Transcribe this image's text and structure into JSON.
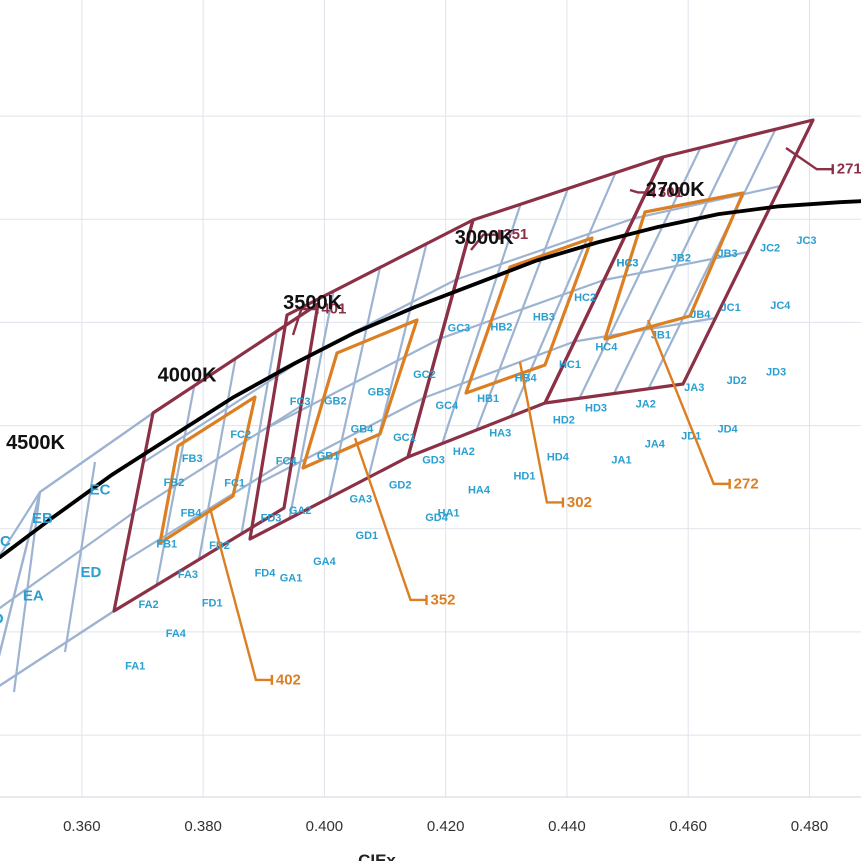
{
  "chart_data": {
    "type": "scatter",
    "xlabel": "CIEx",
    "ylabel": "",
    "xlim": [
      0.3465,
      0.4885
    ],
    "ylim": [
      0.288,
      0.4425
    ],
    "x_ticks": [
      "0.360",
      "0.380",
      "0.400",
      "0.420",
      "0.440",
      "0.460",
      "0.480"
    ],
    "x_tick_values": [
      0.36,
      0.38,
      0.4,
      0.42,
      0.44,
      0.46,
      0.48
    ],
    "y_gridlines": [
      0.3,
      0.32,
      0.34,
      0.36,
      0.38,
      0.4,
      0.42
    ],
    "grid": true,
    "colors": {
      "ansi_quad": "#8b3045",
      "subbin_grid": "#9db3d2",
      "inner_quad": "#dc7f22",
      "bin_text": "#2a9fd0",
      "locus": "#000000"
    },
    "planckian_locus": {
      "x": [
        0.3465,
        0.355,
        0.365,
        0.375,
        0.385,
        0.395,
        0.405,
        0.415,
        0.425,
        0.435,
        0.445,
        0.455,
        0.465,
        0.475,
        0.485,
        0.4885
      ],
      "y": [
        0.3345,
        0.342,
        0.3505,
        0.358,
        0.3655,
        0.372,
        0.378,
        0.383,
        0.3875,
        0.392,
        0.3955,
        0.3985,
        0.401,
        0.4025,
        0.4033,
        0.4035
      ]
    },
    "cct_groups": [
      {
        "cct_label": "4500K",
        "label_at": [
          0.3475,
          0.3555
        ],
        "bins": [
          {
            "name": "EC",
            "x": 0.363,
            "y": 0.3475
          },
          {
            "name": "EB",
            "x": 0.3535,
            "y": 0.342
          },
          {
            "name": "ED",
            "x": 0.3615,
            "y": 0.3315
          },
          {
            "name": "EA",
            "x": 0.352,
            "y": 0.327
          },
          {
            "name": "DC",
            "x": 0.3465,
            "y": 0.3375
          },
          {
            "name": "D",
            "x": 0.3462,
            "y": 0.3225
          }
        ]
      },
      {
        "cct_label": "4000K",
        "label_at": [
          0.3725,
          0.3685
        ],
        "ansi_label": "401",
        "ansi_label_at": [
          0.3995,
          0.3826
        ],
        "inner_label": "402",
        "inner_label_at": [
          0.392,
          0.3107
        ],
        "bins": [
          {
            "name": "FC3",
            "x": 0.396,
            "y": 0.3646
          },
          {
            "name": "FC2",
            "x": 0.3862,
            "y": 0.3582
          },
          {
            "name": "FC4",
            "x": 0.3937,
            "y": 0.353
          },
          {
            "name": "FB3",
            "x": 0.3782,
            "y": 0.3535
          },
          {
            "name": "FC1",
            "x": 0.3852,
            "y": 0.3488
          },
          {
            "name": "FB2",
            "x": 0.3752,
            "y": 0.3489
          },
          {
            "name": "FB4",
            "x": 0.378,
            "y": 0.343
          },
          {
            "name": "FD3",
            "x": 0.3912,
            "y": 0.342
          },
          {
            "name": "FB1",
            "x": 0.374,
            "y": 0.3369
          },
          {
            "name": "FD2",
            "x": 0.3827,
            "y": 0.3367
          },
          {
            "name": "FA3",
            "x": 0.3775,
            "y": 0.331
          },
          {
            "name": "FD4",
            "x": 0.3902,
            "y": 0.3313
          },
          {
            "name": "FA2",
            "x": 0.371,
            "y": 0.3252
          },
          {
            "name": "FD1",
            "x": 0.3815,
            "y": 0.3255
          },
          {
            "name": "FA4",
            "x": 0.3755,
            "y": 0.3196
          },
          {
            "name": "FA1",
            "x": 0.3688,
            "y": 0.3133
          }
        ]
      },
      {
        "cct_label": "3500K",
        "label_at": [
          0.3932,
          0.3826
        ],
        "ansi_label": "351",
        "ansi_label_at": [
          0.4295,
          0.397
        ],
        "inner_label": "352",
        "inner_label_at": [
          0.4175,
          0.3262
        ],
        "bins": [
          {
            "name": "GC3",
            "x": 0.4222,
            "y": 0.3788
          },
          {
            "name": "GC2",
            "x": 0.4165,
            "y": 0.3698
          },
          {
            "name": "GB2",
            "x": 0.4018,
            "y": 0.3647
          },
          {
            "name": "GB3",
            "x": 0.409,
            "y": 0.3664
          },
          {
            "name": "GC4",
            "x": 0.4202,
            "y": 0.3638
          },
          {
            "name": "GB4",
            "x": 0.4062,
            "y": 0.3592
          },
          {
            "name": "GC1",
            "x": 0.4132,
            "y": 0.3576
          },
          {
            "name": "GB1",
            "x": 0.4006,
            "y": 0.354
          },
          {
            "name": "GD3",
            "x": 0.418,
            "y": 0.3532
          },
          {
            "name": "GD2",
            "x": 0.4125,
            "y": 0.3484
          },
          {
            "name": "GA3",
            "x": 0.406,
            "y": 0.3457
          },
          {
            "name": "GA2",
            "x": 0.396,
            "y": 0.3434
          },
          {
            "name": "GD4",
            "x": 0.4185,
            "y": 0.3421
          },
          {
            "name": "GD1",
            "x": 0.407,
            "y": 0.3386
          },
          {
            "name": "GA4",
            "x": 0.4,
            "y": 0.3336
          },
          {
            "name": "GA1",
            "x": 0.3945,
            "y": 0.3304
          }
        ]
      },
      {
        "cct_label": "3000K",
        "label_at": [
          0.4215,
          0.3952
        ],
        "ansi_label": "301",
        "ansi_label_at": [
          0.455,
          0.4052
        ],
        "inner_label": "302",
        "inner_label_at": [
          0.44,
          0.3451
        ],
        "bins": [
          {
            "name": "HC3",
            "x": 0.45,
            "y": 0.3914
          },
          {
            "name": "HC2",
            "x": 0.443,
            "y": 0.3847
          },
          {
            "name": "HB2",
            "x": 0.4292,
            "y": 0.379
          },
          {
            "name": "HB3",
            "x": 0.4362,
            "y": 0.381
          },
          {
            "name": "HC4",
            "x": 0.4465,
            "y": 0.3751
          },
          {
            "name": "HC1",
            "x": 0.4405,
            "y": 0.3717
          },
          {
            "name": "HB4",
            "x": 0.4332,
            "y": 0.3691
          },
          {
            "name": "HB1",
            "x": 0.427,
            "y": 0.3652
          },
          {
            "name": "HD3",
            "x": 0.4448,
            "y": 0.3633
          },
          {
            "name": "HD2",
            "x": 0.4395,
            "y": 0.361
          },
          {
            "name": "HA3",
            "x": 0.429,
            "y": 0.3585
          },
          {
            "name": "HA2",
            "x": 0.423,
            "y": 0.3549
          },
          {
            "name": "HD4",
            "x": 0.4385,
            "y": 0.3538
          },
          {
            "name": "HD1",
            "x": 0.433,
            "y": 0.3501
          },
          {
            "name": "HA4",
            "x": 0.4255,
            "y": 0.3474
          },
          {
            "name": "HA1",
            "x": 0.4205,
            "y": 0.343
          }
        ]
      },
      {
        "cct_label": "2700K",
        "label_at": [
          0.453,
          0.4045
        ],
        "ansi_label": "271",
        "ansi_label_at": [
          0.4845,
          0.4097
        ],
        "inner_label": "272",
        "inner_label_at": [
          0.4675,
          0.3487
        ],
        "bins": [
          {
            "name": "JC3",
            "x": 0.4795,
            "y": 0.3958
          },
          {
            "name": "JC2",
            "x": 0.4735,
            "y": 0.3943
          },
          {
            "name": "JB2",
            "x": 0.4588,
            "y": 0.3924
          },
          {
            "name": "JB3",
            "x": 0.4665,
            "y": 0.3933
          },
          {
            "name": "HC3",
            "x": 0.45,
            "y": 0.3914
          },
          {
            "name": "JB4",
            "x": 0.462,
            "y": 0.3814
          },
          {
            "name": "JC1",
            "x": 0.467,
            "y": 0.3828
          },
          {
            "name": "JC4",
            "x": 0.4752,
            "y": 0.3832
          },
          {
            "name": "JB1",
            "x": 0.4555,
            "y": 0.3775
          },
          {
            "name": "JA3",
            "x": 0.461,
            "y": 0.3673
          },
          {
            "name": "JD2",
            "x": 0.468,
            "y": 0.3686
          },
          {
            "name": "JD3",
            "x": 0.4745,
            "y": 0.3703
          },
          {
            "name": "JA2",
            "x": 0.453,
            "y": 0.3641
          },
          {
            "name": "JA4",
            "x": 0.4545,
            "y": 0.3563
          },
          {
            "name": "JD1",
            "x": 0.4605,
            "y": 0.3579
          },
          {
            "name": "JD4",
            "x": 0.4665,
            "y": 0.3592
          },
          {
            "name": "JA1",
            "x": 0.449,
            "y": 0.3532
          }
        ]
      }
    ]
  }
}
